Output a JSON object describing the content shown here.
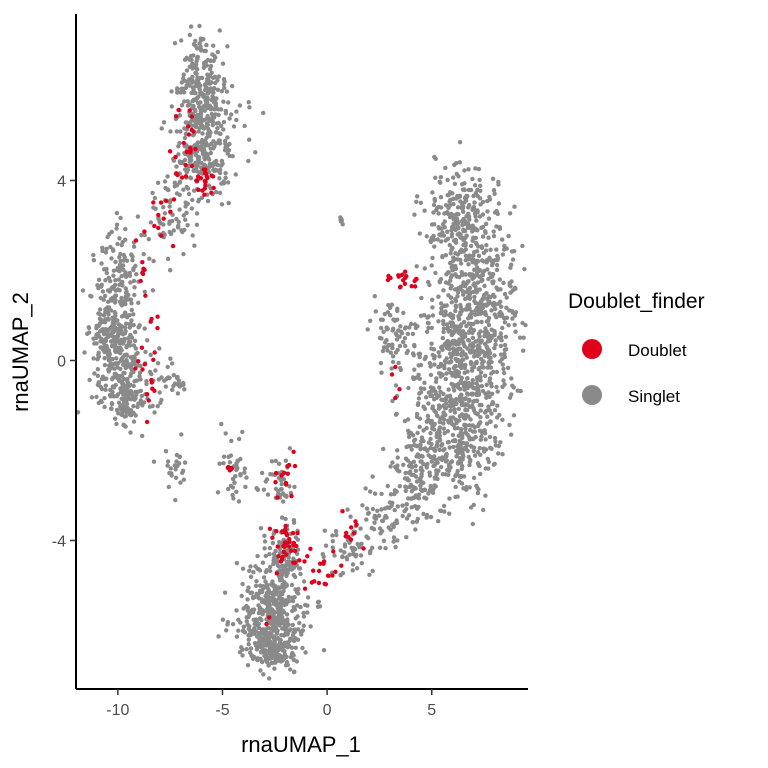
{
  "chart_data": {
    "type": "scatter",
    "title": "",
    "xlabel": "rnaUMAP_1",
    "ylabel": "rnaUMAP_2",
    "xlim": [
      -12,
      9.6
    ],
    "ylim": [
      -7.3,
      7.7
    ],
    "x_ticks": [
      -10,
      -5,
      0,
      5
    ],
    "y_ticks": [
      -4,
      0,
      4
    ],
    "x_tick_labels": [
      "-10",
      "-5",
      "0",
      "5"
    ],
    "y_tick_labels": [
      "-4",
      "0",
      "4"
    ],
    "grid": false,
    "legend": {
      "title": "Doublet_finder",
      "placement": "right",
      "entries": [
        {
          "label": "Doublet",
          "color": "#e0001b"
        },
        {
          "label": "Singlet",
          "color": "#8a8a8a"
        }
      ]
    },
    "series": [
      {
        "name": "Singlet",
        "color": "#8a8a8a",
        "clusters": [
          {
            "cx": -6.0,
            "cy": 6.3,
            "sx": 0.55,
            "sy": 0.55,
            "n": 150
          },
          {
            "cx": -5.8,
            "cy": 5.2,
            "sx": 0.75,
            "sy": 0.6,
            "n": 220
          },
          {
            "cx": -6.2,
            "cy": 4.4,
            "sx": 0.7,
            "sy": 0.4,
            "n": 130
          },
          {
            "cx": -7.3,
            "cy": 3.2,
            "sx": 0.6,
            "sy": 0.45,
            "n": 70
          },
          {
            "cx": -9.8,
            "cy": 1.8,
            "sx": 0.6,
            "sy": 0.6,
            "n": 120
          },
          {
            "cx": -10.2,
            "cy": 0.6,
            "sx": 0.6,
            "sy": 0.65,
            "n": 240
          },
          {
            "cx": -9.6,
            "cy": -0.6,
            "sx": 0.7,
            "sy": 0.5,
            "n": 200
          },
          {
            "cx": -7.3,
            "cy": -0.4,
            "sx": 0.4,
            "sy": 0.2,
            "n": 25
          },
          {
            "cx": -7.3,
            "cy": -2.4,
            "sx": 0.4,
            "sy": 0.25,
            "n": 25
          },
          {
            "cx": 0.7,
            "cy": 3.1,
            "sx": 0.05,
            "sy": 0.05,
            "n": 8
          },
          {
            "cx": 6.5,
            "cy": 3.2,
            "sx": 0.9,
            "sy": 0.6,
            "n": 220
          },
          {
            "cx": 7.0,
            "cy": 1.5,
            "sx": 1.0,
            "sy": 0.8,
            "n": 380
          },
          {
            "cx": 6.6,
            "cy": -0.2,
            "sx": 1.2,
            "sy": 0.8,
            "n": 420
          },
          {
            "cx": 6.0,
            "cy": -1.8,
            "sx": 1.1,
            "sy": 0.7,
            "n": 320
          },
          {
            "cx": 4.3,
            "cy": -2.6,
            "sx": 0.6,
            "sy": 0.5,
            "n": 120
          },
          {
            "cx": 3.3,
            "cy": 0.5,
            "sx": 0.5,
            "sy": 0.5,
            "n": 80
          },
          {
            "cx": 2.6,
            "cy": -3.5,
            "sx": 0.6,
            "sy": 0.3,
            "n": 60
          },
          {
            "cx": 1.0,
            "cy": -4.2,
            "sx": 0.6,
            "sy": 0.3,
            "n": 50
          },
          {
            "cx": -2.6,
            "cy": -5.6,
            "sx": 0.85,
            "sy": 0.55,
            "n": 380
          },
          {
            "cx": -2.7,
            "cy": -6.4,
            "sx": 0.6,
            "sy": 0.25,
            "n": 150
          },
          {
            "cx": -2.2,
            "cy": -4.3,
            "sx": 0.5,
            "sy": 0.4,
            "n": 90
          },
          {
            "cx": -4.5,
            "cy": -2.4,
            "sx": 0.3,
            "sy": 0.4,
            "n": 40
          },
          {
            "cx": -2.5,
            "cy": -2.7,
            "sx": 0.4,
            "sy": 0.3,
            "n": 40
          }
        ]
      },
      {
        "name": "Doublet",
        "color": "#e0001b",
        "clusters": [
          {
            "cx": -5.8,
            "cy": 4.0,
            "sx": 0.3,
            "sy": 0.15,
            "n": 22
          },
          {
            "cx": -7.0,
            "cy": 4.3,
            "sx": 0.5,
            "sy": 0.25,
            "n": 12
          },
          {
            "cx": -6.5,
            "cy": 5.2,
            "sx": 0.4,
            "sy": 0.3,
            "n": 10
          },
          {
            "cx": -8.0,
            "cy": 3.0,
            "sx": 0.4,
            "sy": 0.4,
            "n": 12
          },
          {
            "cx": -9.0,
            "cy": 2.0,
            "sx": 0.3,
            "sy": 0.35,
            "n": 8
          },
          {
            "cx": -8.7,
            "cy": -0.2,
            "sx": 0.35,
            "sy": 0.5,
            "n": 18
          },
          {
            "cx": 3.8,
            "cy": 1.8,
            "sx": 0.35,
            "sy": 0.15,
            "n": 18
          },
          {
            "cx": 3.3,
            "cy": -0.5,
            "sx": 0.3,
            "sy": 0.5,
            "n": 4
          },
          {
            "cx": -2.0,
            "cy": -2.6,
            "sx": 0.2,
            "sy": 0.2,
            "n": 12
          },
          {
            "cx": -4.6,
            "cy": -2.4,
            "sx": 0.15,
            "sy": 0.15,
            "n": 5
          },
          {
            "cx": -2.0,
            "cy": -4.0,
            "sx": 0.35,
            "sy": 0.3,
            "n": 35
          },
          {
            "cx": -0.4,
            "cy": -4.6,
            "sx": 0.6,
            "sy": 0.25,
            "n": 20
          },
          {
            "cx": 1.0,
            "cy": -3.9,
            "sx": 0.3,
            "sy": 0.25,
            "n": 10
          },
          {
            "cx": -2.9,
            "cy": -5.9,
            "sx": 0.1,
            "sy": 0.1,
            "n": 2
          }
        ]
      }
    ]
  }
}
